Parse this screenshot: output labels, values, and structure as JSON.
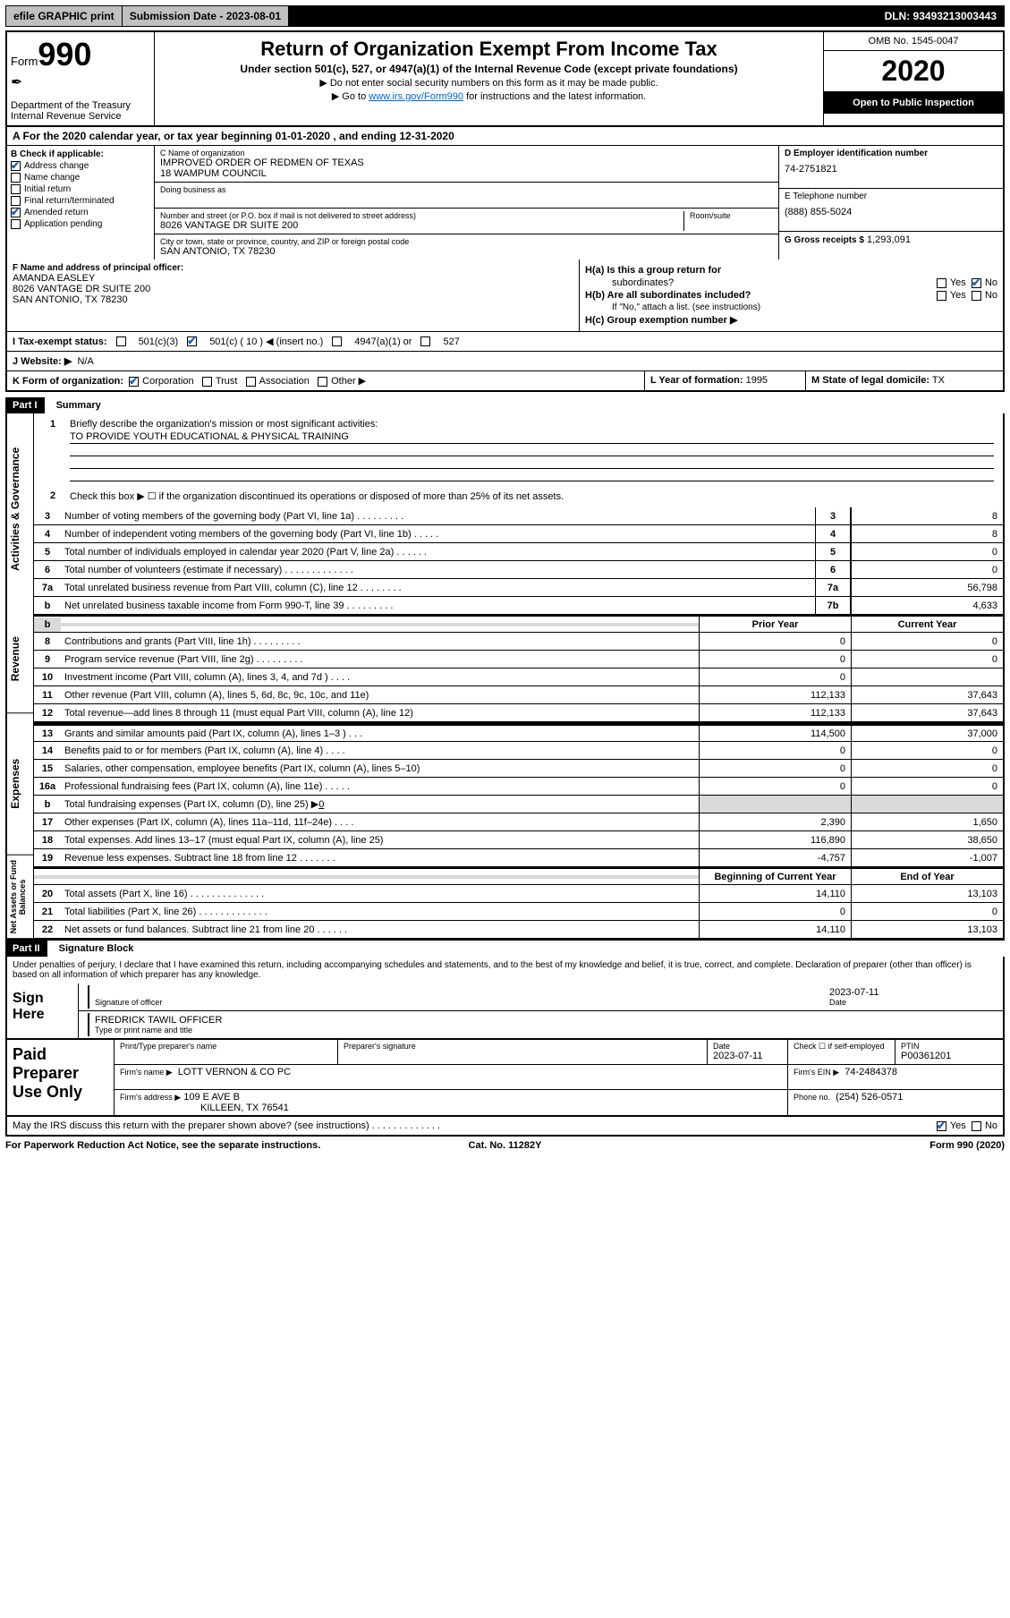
{
  "topbar": {
    "efile": "efile GRAPHIC print",
    "submission_label": "Submission Date - 2023-08-01",
    "dln": "DLN: 93493213003443"
  },
  "header": {
    "form_label": "Form",
    "form_num": "990",
    "dept": "Department of the Treasury",
    "irs": "Internal Revenue Service",
    "title": "Return of Organization Exempt From Income Tax",
    "subtitle": "Under section 501(c), 527, or 4947(a)(1) of the Internal Revenue Code (except private foundations)",
    "note1": "▶ Do not enter social security numbers on this form as it may be made public.",
    "note2_pre": "▶ Go to ",
    "note2_link": "www.irs.gov/Form990",
    "note2_post": " for instructions and the latest information.",
    "omb": "OMB No. 1545-0047",
    "year": "2020",
    "open": "Open to Public Inspection"
  },
  "period": "A For the 2020 calendar year, or tax year beginning 01-01-2020   , and ending 12-31-2020",
  "sectionB": {
    "title": "B Check if applicable:",
    "items": [
      {
        "label": "Address change",
        "checked": true
      },
      {
        "label": "Name change",
        "checked": false
      },
      {
        "label": "Initial return",
        "checked": false
      },
      {
        "label": "Final return/terminated",
        "checked": false
      },
      {
        "label": "Amended return",
        "checked": true
      },
      {
        "label": "Application pending",
        "checked": false
      }
    ]
  },
  "sectionC": {
    "name_label": "C Name of organization",
    "name1": "IMPROVED ORDER OF REDMEN OF TEXAS",
    "name2": "18 WAMPUM COUNCIL",
    "dba_label": "Doing business as",
    "addr_label": "Number and street (or P.O. box if mail is not delivered to street address)",
    "room_label": "Room/suite",
    "addr": "8026 VANTAGE DR SUITE 200",
    "city_label": "City or town, state or province, country, and ZIP or foreign postal code",
    "city": "SAN ANTONIO, TX  78230"
  },
  "sectionD": {
    "label": "D Employer identification number",
    "val": "74-2751821"
  },
  "sectionE": {
    "label": "E Telephone number",
    "val": "(888) 855-5024"
  },
  "sectionG": {
    "label": "G Gross receipts $",
    "val": "1,293,091"
  },
  "sectionF": {
    "label": "F Name and address of principal officer:",
    "name": "AMANDA EASLEY",
    "addr1": "8026 VANTAGE DR SUITE 200",
    "addr2": "SAN ANTONIO, TX  78230"
  },
  "sectionH": {
    "a_label": "H(a)  Is this a group return for",
    "a_label2": "subordinates?",
    "a_yes": "Yes",
    "a_no": "No",
    "b_label": "H(b)  Are all subordinates included?",
    "b_note": "If \"No,\" attach a list. (see instructions)",
    "c_label": "H(c)  Group exemption number ▶"
  },
  "sectionI": {
    "label": "I    Tax-exempt status:",
    "opt1": "501(c)(3)",
    "opt2": "501(c) ( 10 ) ◀ (insert no.)",
    "opt3": "4947(a)(1) or",
    "opt4": "527"
  },
  "sectionJ": {
    "label": "J   Website: ▶",
    "val": "N/A"
  },
  "sectionK": {
    "label": "K Form of organization:",
    "opts": [
      "Corporation",
      "Trust",
      "Association",
      "Other ▶"
    ],
    "l_label": "L Year of formation:",
    "l_val": "1995",
    "m_label": "M State of legal domicile:",
    "m_val": "TX"
  },
  "partI": {
    "tag": "Part I",
    "title": "Summary"
  },
  "summary": {
    "vtabs": [
      "Activities & Governance",
      "Revenue",
      "Expenses",
      "Net Assets or Fund Balances"
    ],
    "line1_label": "Briefly describe the organization's mission or most significant activities:",
    "line1_val": "TO PROVIDE YOUTH EDUCATIONAL & PHYSICAL TRAINING",
    "line2": "Check this box ▶ ☐  if the organization discontinued its operations or disposed of more than 25% of its net assets.",
    "rows_a": [
      {
        "n": "3",
        "label": "Number of voting members of the governing body (Part VI, line 1a)  .   .   .   .   .   .   .   .   .",
        "box": "3",
        "val": "8"
      },
      {
        "n": "4",
        "label": "Number of independent voting members of the governing body (Part VI, line 1b)   .   .   .   .   .",
        "box": "4",
        "val": "8"
      },
      {
        "n": "5",
        "label": "Total number of individuals employed in calendar year 2020 (Part V, line 2a)   .   .   .   .   .   .",
        "box": "5",
        "val": "0"
      },
      {
        "n": "6",
        "label": "Total number of volunteers (estimate if necessary)   .   .   .   .   .   .   .   .   .   .   .   .   .",
        "box": "6",
        "val": "0"
      },
      {
        "n": "7a",
        "label": "Total unrelated business revenue from Part VIII, column (C), line 12   .   .   .   .   .   .   .   .",
        "box": "7a",
        "val": "56,798"
      },
      {
        "n": "b",
        "label": "Net unrelated business taxable income from Form 990-T, line 39   .   .   .   .   .   .   .   .   .",
        "box": "7b",
        "val": "4,633"
      }
    ],
    "hdr_prior": "Prior Year",
    "hdr_curr": "Current Year",
    "rows_rev": [
      {
        "n": "8",
        "label": "Contributions and grants (Part VIII, line 1h)   .   .   .   .   .   .   .   .   .",
        "p": "0",
        "c": "0"
      },
      {
        "n": "9",
        "label": "Program service revenue (Part VIII, line 2g)   .   .   .   .   .   .   .   .   .",
        "p": "0",
        "c": "0"
      },
      {
        "n": "10",
        "label": "Investment income (Part VIII, column (A), lines 3, 4, and 7d )   .   .   .   .",
        "p": "0",
        "c": ""
      },
      {
        "n": "11",
        "label": "Other revenue (Part VIII, column (A), lines 5, 6d, 8c, 9c, 10c, and 11e)",
        "p": "112,133",
        "c": "37,643"
      },
      {
        "n": "12",
        "label": "Total revenue—add lines 8 through 11 (must equal Part VIII, column (A), line 12)",
        "p": "112,133",
        "c": "37,643"
      }
    ],
    "rows_exp": [
      {
        "n": "13",
        "label": "Grants and similar amounts paid (Part IX, column (A), lines 1–3 )   .   .   .",
        "p": "114,500",
        "c": "37,000"
      },
      {
        "n": "14",
        "label": "Benefits paid to or for members (Part IX, column (A), line 4)   .   .   .   .",
        "p": "0",
        "c": "0"
      },
      {
        "n": "15",
        "label": "Salaries, other compensation, employee benefits (Part IX, column (A), lines 5–10)",
        "p": "0",
        "c": "0"
      },
      {
        "n": "16a",
        "label": "Professional fundraising fees (Part IX, column (A), line 11e)   .   .   .   .   .",
        "p": "0",
        "c": "0"
      }
    ],
    "line16b_label": "Total fundraising expenses (Part IX, column (D), line 25) ▶",
    "line16b_val": "0",
    "rows_exp2": [
      {
        "n": "17",
        "label": "Other expenses (Part IX, column (A), lines 11a–11d, 11f–24e)   .   .   .   .",
        "p": "2,390",
        "c": "1,650"
      },
      {
        "n": "18",
        "label": "Total expenses. Add lines 13–17 (must equal Part IX, column (A), line 25)",
        "p": "116,890",
        "c": "38,650"
      },
      {
        "n": "19",
        "label": "Revenue less expenses. Subtract line 18 from line 12   .   .   .   .   .   .   .",
        "p": "-4,757",
        "c": "-1,007"
      }
    ],
    "hdr_begin": "Beginning of Current Year",
    "hdr_end": "End of Year",
    "rows_na": [
      {
        "n": "20",
        "label": "Total assets (Part X, line 16)   .   .   .   .   .   .   .   .   .   .   .   .   .   .",
        "p": "14,110",
        "c": "13,103"
      },
      {
        "n": "21",
        "label": "Total liabilities (Part X, line 26)   .   .   .   .   .   .   .   .   .   .   .   .   .",
        "p": "0",
        "c": "0"
      },
      {
        "n": "22",
        "label": "Net assets or fund balances. Subtract line 21 from line 20   .   .   .   .   .   .",
        "p": "14,110",
        "c": "13,103"
      }
    ]
  },
  "partII": {
    "tag": "Part II",
    "title": "Signature Block",
    "penalty": "Under penalties of perjury, I declare that I have examined this return, including accompanying schedules and statements, and to the best of my knowledge and belief, it is true, correct, and complete. Declaration of preparer (other than officer) is based on all information of which preparer has any knowledge."
  },
  "sign": {
    "here": "Sign Here",
    "sig_label": "Signature of officer",
    "date": "2023-07-11",
    "date_label": "Date",
    "name": "FREDRICK TAWIL OFFICER",
    "name_label": "Type or print name and title"
  },
  "prep": {
    "title": "Paid Preparer Use Only",
    "hdr_name": "Print/Type preparer's name",
    "hdr_sig": "Preparer's signature",
    "hdr_date": "Date",
    "date": "2023-07-11",
    "check_label": "Check ☐ if self-employed",
    "ptin_label": "PTIN",
    "ptin": "P00361201",
    "firm_name_label": "Firm's name     ▶",
    "firm_name": "LOTT VERNON & CO PC",
    "firm_ein_label": "Firm's EIN ▶",
    "firm_ein": "74-2484378",
    "firm_addr_label": "Firm's address  ▶",
    "firm_addr1": "109 E AVE B",
    "firm_addr2": "KILLEEN, TX  76541",
    "phone_label": "Phone no.",
    "phone": "(254) 526-0571",
    "discuss": "May the IRS discuss this return with the preparer shown above? (see instructions)   .   .   .   .   .   .   .   .   .   .   .   .   .",
    "yes": "Yes",
    "no": "No"
  },
  "footer": {
    "left": "For Paperwork Reduction Act Notice, see the separate instructions.",
    "mid": "Cat. No. 11282Y",
    "right": "Form 990 (2020)"
  }
}
